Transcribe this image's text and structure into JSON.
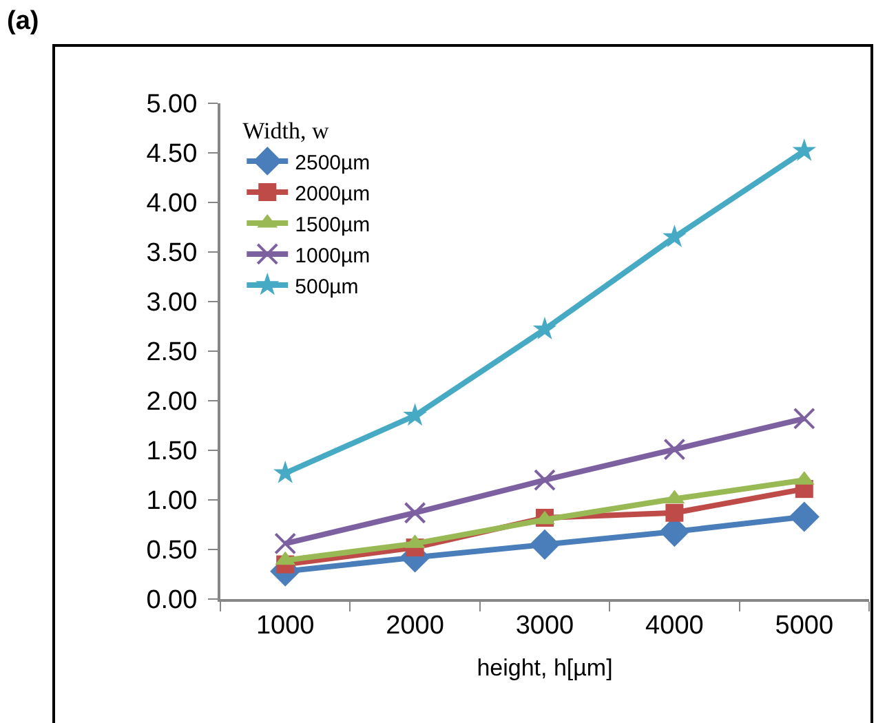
{
  "chart_data": {
    "type": "line",
    "title": "(a)",
    "xlabel": "height, h[µm]",
    "legend_title": "Width, w",
    "legend": "top left",
    "grid": false,
    "categories": [
      "1000",
      "2000",
      "3000",
      "4000",
      "5000"
    ],
    "ylim": [
      0,
      5
    ],
    "yticks": [
      {
        "value": 0,
        "label": "0.00"
      },
      {
        "value": 0.5,
        "label": "0.50"
      },
      {
        "value": 1,
        "label": "1.00"
      },
      {
        "value": 1.5,
        "label": "1.50"
      },
      {
        "value": 2,
        "label": "2.00"
      },
      {
        "value": 2.5,
        "label": "2.50"
      },
      {
        "value": 3,
        "label": "3.00"
      },
      {
        "value": 3.5,
        "label": "3.50"
      },
      {
        "value": 4,
        "label": "4.00"
      },
      {
        "value": 4.5,
        "label": "4.50"
      },
      {
        "value": 5,
        "label": "5.00"
      }
    ],
    "series": [
      {
        "name": "2500µm",
        "color": "#4a7ebb",
        "marker": "diamond",
        "values": [
          0.28,
          0.42,
          0.55,
          0.68,
          0.83
        ]
      },
      {
        "name": "2000µm",
        "color": "#be4b48",
        "marker": "square",
        "values": [
          0.35,
          0.52,
          0.82,
          0.87,
          1.11
        ]
      },
      {
        "name": "1500µm",
        "color": "#98b954",
        "marker": "triangle",
        "values": [
          0.39,
          0.56,
          0.8,
          1.01,
          1.2
        ]
      },
      {
        "name": "1000µm",
        "color": "#7d60a0",
        "marker": "cross",
        "values": [
          0.56,
          0.87,
          1.2,
          1.51,
          1.82
        ]
      },
      {
        "name": "500µm",
        "color": "#46aac5",
        "marker": "star",
        "values": [
          1.27,
          1.85,
          2.72,
          3.65,
          4.52
        ]
      }
    ]
  }
}
